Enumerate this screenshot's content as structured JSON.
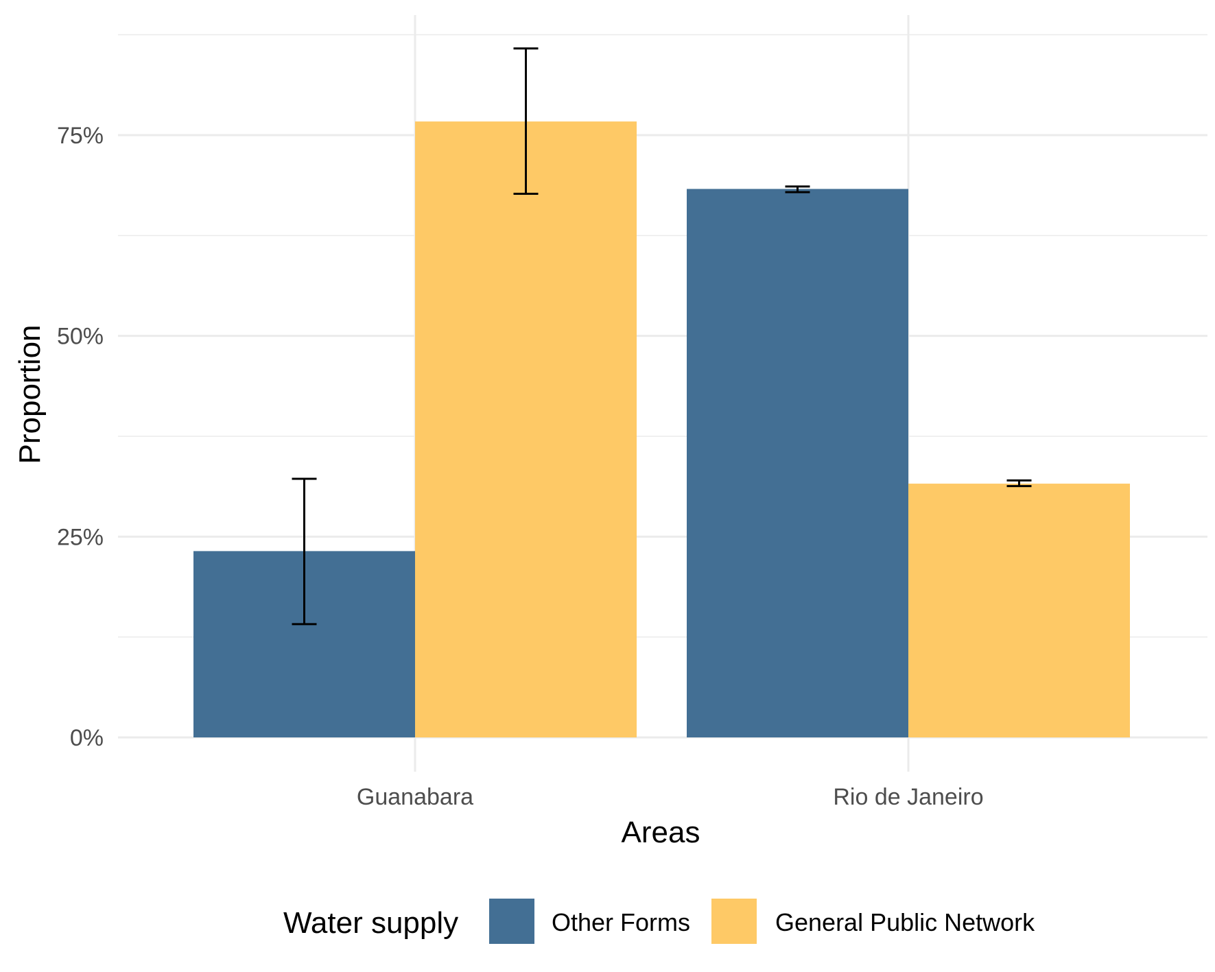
{
  "chart_data": {
    "type": "bar",
    "xlabel": "Areas",
    "ylabel": "Proportion",
    "categories": [
      "Guanabara",
      "Rio de Janeiro"
    ],
    "series": [
      {
        "name": "Other Forms",
        "color": "#436f94",
        "values": [
          0.232,
          0.683
        ],
        "error_low": [
          0.141,
          0.679
        ],
        "error_high": [
          0.322,
          0.686
        ]
      },
      {
        "name": "General Public Network",
        "color": "#fec966",
        "values": [
          0.767,
          0.316
        ],
        "error_low": [
          0.677,
          0.313
        ],
        "error_high": [
          0.858,
          0.32
        ]
      }
    ],
    "ylim": [
      -0.05,
      0.9
    ],
    "yticks": [
      0,
      0.25,
      0.5,
      0.75
    ],
    "ytick_labels": [
      "0%",
      "25%",
      "50%",
      "75%"
    ],
    "grid": true,
    "legend": {
      "title": "Water supply",
      "position": "bottom"
    }
  }
}
